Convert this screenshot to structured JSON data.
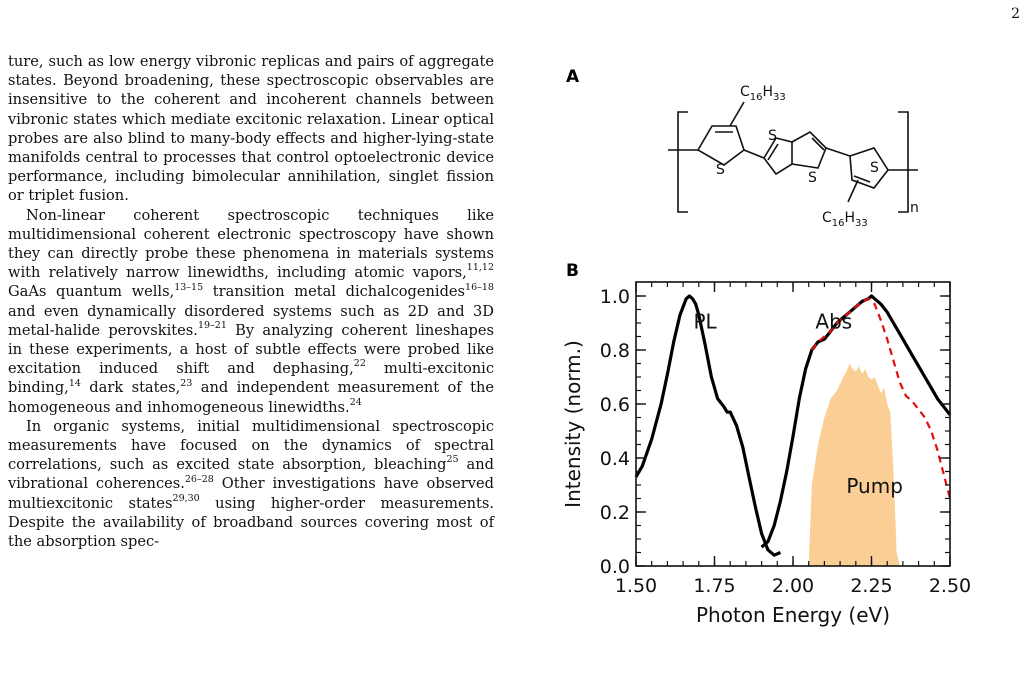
{
  "page_number": "2",
  "paragraphs": [
    {
      "indent": false,
      "segments": [
        {
          "t": "ture, such as low energy vibronic replicas and pairs of aggregate states. Beyond broadening, these spectroscopic observables are insensitive to the coherent and incoherent channels between vibronic states which mediate excitonic relaxation. Linear optical probes are also blind to many-body effects and higher-lying-state manifolds central to processes that control optoelectronic device performance, including bimolecular annihilation, singlet fission or triplet fusion."
        }
      ]
    },
    {
      "indent": true,
      "segments": [
        {
          "t": "Non-linear coherent spectroscopic techniques like multidimensional coherent electronic spectroscopy have shown they can directly probe these phenomena in materials systems with relatively narrow linewidths, including atomic vapors,"
        },
        {
          "sup": "11,12"
        },
        {
          "t": " GaAs quantum wells,"
        },
        {
          "sup": "13–15"
        },
        {
          "t": " transition metal dichalcogenides"
        },
        {
          "sup": "16–18"
        },
        {
          "t": " and even dynamically disordered systems such as 2D and 3D metal-halide perovskites."
        },
        {
          "sup": "19–21"
        },
        {
          "t": " By analyzing coherent lineshapes in these experiments, a host of subtle effects were probed like excitation induced shift and dephasing,"
        },
        {
          "sup": "22"
        },
        {
          "t": " multi-excitonic binding,"
        },
        {
          "sup": "14"
        },
        {
          "t": " dark states,"
        },
        {
          "sup": "23"
        },
        {
          "t": " and independent measurement of the homogeneous and inhomogeneous linewidths."
        },
        {
          "sup": "24"
        }
      ]
    },
    {
      "indent": true,
      "segments": [
        {
          "t": "In organic systems, initial multidimensional spectroscopic measurements have focused on the dynamics of spectral correlations, such as excited state absorption, bleaching"
        },
        {
          "sup": "25"
        },
        {
          "t": " and vibrational coherences."
        },
        {
          "sup": "26–28"
        },
        {
          "t": " Other investigations have observed multiexcitonic states"
        },
        {
          "sup": "29,30"
        },
        {
          "t": " using higher-order measurements. Despite the availability of broadband sources covering most of the absorption spec-"
        }
      ]
    }
  ],
  "figure": {
    "panel_a_label": "A",
    "panel_b_label": "B",
    "molecule": {
      "sulfur_label": "S",
      "substituent_top": {
        "base": "C",
        "sub1": "16",
        "mid": "H",
        "sub2": "33"
      },
      "substituent_bottom": {
        "base": "C",
        "sub1": "16",
        "mid": "H",
        "sub2": "33"
      },
      "repeat_label": "n"
    }
  },
  "chart_data": {
    "type": "line",
    "title": "",
    "xlabel": "Photon Energy (eV)",
    "ylabel": "Intensity (norm.)",
    "xlim": [
      1.5,
      2.5
    ],
    "ylim": [
      0.0,
      1.0
    ],
    "xticks": [
      "1.50",
      "1.75",
      "2.00",
      "2.25",
      "2.50"
    ],
    "yticks": [
      "0.0",
      "0.2",
      "0.4",
      "0.6",
      "0.8",
      "1.0"
    ],
    "annotations": [
      "PL",
      "Abs",
      "Pump"
    ],
    "series": [
      {
        "name": "PL",
        "style": "solid",
        "color": "#000000",
        "x": [
          1.5,
          1.52,
          1.55,
          1.58,
          1.6,
          1.62,
          1.64,
          1.66,
          1.67,
          1.68,
          1.69,
          1.7,
          1.72,
          1.74,
          1.76,
          1.78,
          1.79,
          1.8,
          1.82,
          1.84,
          1.86,
          1.88,
          1.9,
          1.92,
          1.94,
          1.96
        ],
        "y": [
          0.33,
          0.37,
          0.47,
          0.6,
          0.71,
          0.83,
          0.93,
          0.99,
          1.0,
          0.99,
          0.97,
          0.93,
          0.82,
          0.7,
          0.62,
          0.59,
          0.57,
          0.57,
          0.52,
          0.44,
          0.33,
          0.22,
          0.12,
          0.06,
          0.04,
          0.05
        ]
      },
      {
        "name": "Abs",
        "style": "solid",
        "color": "#000000",
        "x": [
          1.9,
          1.92,
          1.94,
          1.96,
          1.98,
          2.0,
          2.02,
          2.04,
          2.06,
          2.08,
          2.1,
          2.12,
          2.14,
          2.16,
          2.18,
          2.2,
          2.22,
          2.24,
          2.25,
          2.26,
          2.28,
          2.3,
          2.32,
          2.34,
          2.36,
          2.38,
          2.4,
          2.42,
          2.44,
          2.46,
          2.48,
          2.5
        ],
        "y": [
          0.07,
          0.09,
          0.15,
          0.24,
          0.35,
          0.48,
          0.62,
          0.73,
          0.8,
          0.83,
          0.84,
          0.87,
          0.9,
          0.92,
          0.94,
          0.96,
          0.98,
          0.99,
          1.0,
          0.99,
          0.97,
          0.94,
          0.9,
          0.86,
          0.82,
          0.78,
          0.74,
          0.7,
          0.66,
          0.62,
          0.59,
          0.56
        ]
      },
      {
        "name": "Abs (dashed)",
        "style": "dashed",
        "color": "#e01010",
        "x": [
          2.06,
          2.08,
          2.1,
          2.12,
          2.14,
          2.16,
          2.18,
          2.2,
          2.22,
          2.24,
          2.26,
          2.28,
          2.3,
          2.32,
          2.34,
          2.36,
          2.38,
          2.4,
          2.42,
          2.44,
          2.46,
          2.48,
          2.5
        ],
        "y": [
          0.8,
          0.83,
          0.85,
          0.87,
          0.9,
          0.92,
          0.94,
          0.96,
          0.98,
          0.99,
          0.97,
          0.91,
          0.84,
          0.76,
          0.68,
          0.63,
          0.61,
          0.58,
          0.55,
          0.5,
          0.43,
          0.34,
          0.25
        ]
      },
      {
        "name": "Pump",
        "type": "area",
        "color": "#f9c98a",
        "x": [
          2.05,
          2.06,
          2.08,
          2.1,
          2.12,
          2.14,
          2.16,
          2.17,
          2.18,
          2.19,
          2.2,
          2.21,
          2.22,
          2.23,
          2.24,
          2.25,
          2.26,
          2.27,
          2.28,
          2.29,
          2.3,
          2.31,
          2.32,
          2.33,
          2.34
        ],
        "y": [
          0.0,
          0.3,
          0.45,
          0.55,
          0.62,
          0.65,
          0.7,
          0.72,
          0.75,
          0.73,
          0.72,
          0.74,
          0.71,
          0.73,
          0.7,
          0.69,
          0.7,
          0.67,
          0.64,
          0.66,
          0.6,
          0.57,
          0.35,
          0.05,
          0.0
        ]
      }
    ]
  }
}
